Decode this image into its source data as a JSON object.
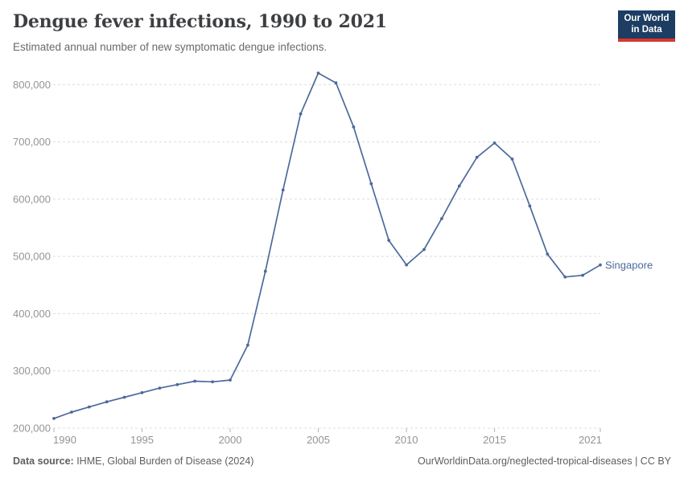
{
  "header": {
    "title": "Dengue fever infections, 1990 to 2021",
    "subtitle": "Estimated annual number of new symptomatic dengue infections.",
    "logo": {
      "line1": "Our World",
      "line2": "in Data"
    }
  },
  "footer": {
    "source_label": "Data source:",
    "source_text": " IHME, Global Burden of Disease (2024)",
    "link_text": "OurWorldinData.org/neglected-tropical-diseases",
    "separator": " | ",
    "license": "CC BY"
  },
  "colors": {
    "line": "#4c6a9c",
    "grid": "#dcdcdc",
    "tick_mark": "#b3b3b3",
    "tick_text": "#949494",
    "logo_bg": "#1d3d63",
    "logo_red": "#d7382d"
  },
  "chart_data": {
    "type": "line",
    "title": "Dengue fever infections, 1990 to 2021",
    "xlabel": "",
    "ylabel": "",
    "xlim": [
      1990,
      2021
    ],
    "ylim": [
      200000,
      800000
    ],
    "grid": "horizontal-dashed",
    "legend_position": "line-end-label",
    "xticks": [
      1990,
      1995,
      2000,
      2005,
      2010,
      2015,
      2021
    ],
    "yticks": [
      200000,
      300000,
      400000,
      500000,
      600000,
      700000,
      800000
    ],
    "series": [
      {
        "name": "Singapore",
        "x": [
          1990,
          1991,
          1992,
          1993,
          1994,
          1995,
          1996,
          1997,
          1998,
          1999,
          2000,
          2001,
          2002,
          2003,
          2004,
          2005,
          2006,
          2007,
          2008,
          2009,
          2010,
          2011,
          2012,
          2013,
          2014,
          2015,
          2016,
          2017,
          2018,
          2019,
          2020,
          2021
        ],
        "values": [
          217000,
          228000,
          237000,
          246000,
          254000,
          262000,
          270000,
          276000,
          282000,
          281000,
          284000,
          345000,
          474000,
          616000,
          749000,
          820000,
          803000,
          726000,
          627000,
          528000,
          485000,
          512000,
          566000,
          623000,
          673000,
          698000,
          670000,
          588000,
          504000,
          464000,
          467000,
          485000
        ]
      }
    ]
  }
}
